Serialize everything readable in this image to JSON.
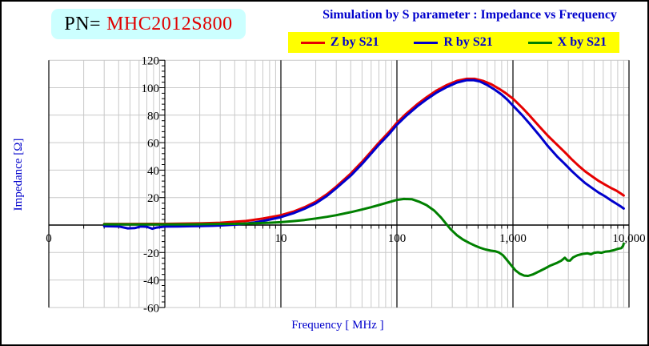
{
  "header": {
    "pn_label": "PN=",
    "pn_value": "MHC2012S800"
  },
  "colors": {
    "accent_blue": "#0000cc",
    "legend_bg": "#ffff00",
    "pn_bg": "#ccffff",
    "pn_value_red": "#e00000",
    "grid_gray": "#c9c9c9",
    "axis_black": "#000000",
    "tick_text": "#000000"
  },
  "chart_data": {
    "type": "line",
    "title": "Simulation by S parameter : Impedance vs Frequency",
    "xlabel": "Frequency [ MHz ]",
    "ylabel": "Impedance [Ω]",
    "x_scale": "log",
    "xlim_mhz": [
      0.1,
      10000
    ],
    "ylim": [
      -60,
      120
    ],
    "y_tick_step": 20,
    "y_tick_labels": [
      120,
      100,
      80,
      60,
      40,
      20,
      -20,
      -40,
      -60
    ],
    "x_ticks": [
      {
        "label": "0",
        "mhz": 0.1
      },
      {
        "label": "10",
        "mhz": 10
      },
      {
        "label": "100",
        "mhz": 100
      },
      {
        "label": "1,000",
        "mhz": 1000
      },
      {
        "label": "10,000",
        "mhz": 10000
      }
    ],
    "grid": "log minor gridlines gray; decade lines, zero line, left frame and 1 MHz value axis black",
    "legend_position": "top",
    "series": [
      {
        "name": "Z by S21",
        "color": "#e60000",
        "points": [
          [
            0.3,
            0.8
          ],
          [
            0.5,
            0.8
          ],
          [
            0.8,
            0.9
          ],
          [
            1,
            0.9
          ],
          [
            2,
            1.2
          ],
          [
            3,
            1.7
          ],
          [
            5,
            3
          ],
          [
            7,
            4.8
          ],
          [
            10,
            7.2
          ],
          [
            13,
            10
          ],
          [
            16,
            13
          ],
          [
            20,
            17
          ],
          [
            25,
            22.5
          ],
          [
            30,
            28
          ],
          [
            40,
            37.5
          ],
          [
            50,
            46
          ],
          [
            60,
            53.5
          ],
          [
            70,
            60
          ],
          [
            85,
            67.5
          ],
          [
            100,
            74.5
          ],
          [
            120,
            81
          ],
          [
            150,
            88
          ],
          [
            180,
            93
          ],
          [
            220,
            98
          ],
          [
            270,
            102
          ],
          [
            330,
            105
          ],
          [
            400,
            106.5
          ],
          [
            470,
            106.5
          ],
          [
            550,
            105
          ],
          [
            650,
            102.5
          ],
          [
            750,
            99.5
          ],
          [
            850,
            96.5
          ],
          [
            1000,
            92
          ],
          [
            1200,
            85.5
          ],
          [
            1400,
            79.5
          ],
          [
            1700,
            71.5
          ],
          [
            2000,
            65
          ],
          [
            2400,
            58.5
          ],
          [
            2800,
            53
          ],
          [
            3200,
            48
          ],
          [
            3700,
            43
          ],
          [
            4200,
            39
          ],
          [
            4800,
            35.5
          ],
          [
            5500,
            32
          ],
          [
            6200,
            29.5
          ],
          [
            7000,
            27
          ],
          [
            7800,
            25
          ],
          [
            8500,
            23
          ],
          [
            9000,
            21.5
          ]
        ]
      },
      {
        "name": "R by S21",
        "color": "#0000cc",
        "points": [
          [
            0.3,
            -0.8
          ],
          [
            0.4,
            -1
          ],
          [
            0.48,
            -2.4
          ],
          [
            0.55,
            -2.2
          ],
          [
            0.62,
            -1
          ],
          [
            0.7,
            -1.2
          ],
          [
            0.78,
            -2.7
          ],
          [
            0.85,
            -1.8
          ],
          [
            1,
            -1.1
          ],
          [
            1.3,
            -1
          ],
          [
            1.7,
            -0.8
          ],
          [
            2,
            -0.7
          ],
          [
            2.6,
            -0.5
          ],
          [
            3,
            -0.3
          ],
          [
            4,
            0.3
          ],
          [
            5,
            1.1
          ],
          [
            6,
            2
          ],
          [
            7,
            3
          ],
          [
            8,
            4
          ],
          [
            10,
            5.8
          ],
          [
            13,
            8.8
          ],
          [
            16,
            11.9
          ],
          [
            20,
            15.8
          ],
          [
            25,
            21.3
          ],
          [
            30,
            26.8
          ],
          [
            40,
            36
          ],
          [
            50,
            44.5
          ],
          [
            60,
            52
          ],
          [
            70,
            58.5
          ],
          [
            85,
            66
          ],
          [
            100,
            73
          ],
          [
            120,
            79.5
          ],
          [
            150,
            86.5
          ],
          [
            180,
            91.5
          ],
          [
            220,
            96.5
          ],
          [
            270,
            100.5
          ],
          [
            330,
            103.8
          ],
          [
            400,
            105.5
          ],
          [
            460,
            105.5
          ],
          [
            520,
            104.5
          ],
          [
            600,
            102
          ],
          [
            700,
            98.5
          ],
          [
            800,
            95
          ],
          [
            900,
            91
          ],
          [
            1000,
            87
          ],
          [
            1200,
            80
          ],
          [
            1400,
            73.5
          ],
          [
            1700,
            65
          ],
          [
            2000,
            57.5
          ],
          [
            2400,
            50
          ],
          [
            2800,
            44.5
          ],
          [
            3200,
            39.5
          ],
          [
            3700,
            34.5
          ],
          [
            4200,
            30.5
          ],
          [
            4800,
            27
          ],
          [
            5500,
            23.5
          ],
          [
            6200,
            21
          ],
          [
            7000,
            18
          ],
          [
            7800,
            15.5
          ],
          [
            8500,
            13.5
          ],
          [
            9000,
            12
          ]
        ]
      },
      {
        "name": "X by S21",
        "color": "#008000",
        "points": [
          [
            0.3,
            0.6
          ],
          [
            0.5,
            0.5
          ],
          [
            0.8,
            0.5
          ],
          [
            1,
            0.5
          ],
          [
            1.5,
            0.5
          ],
          [
            2,
            0.6
          ],
          [
            3,
            0.8
          ],
          [
            4,
            0.9
          ],
          [
            5,
            1.1
          ],
          [
            6,
            1.3
          ],
          [
            7,
            1.5
          ],
          [
            8,
            1.7
          ],
          [
            10,
            2.1
          ],
          [
            13,
            2.9
          ],
          [
            16,
            3.7
          ],
          [
            20,
            4.8
          ],
          [
            25,
            6
          ],
          [
            30,
            7.2
          ],
          [
            40,
            9.4
          ],
          [
            50,
            11.3
          ],
          [
            60,
            13
          ],
          [
            70,
            14.6
          ],
          [
            85,
            16.6
          ],
          [
            100,
            18.3
          ],
          [
            115,
            19
          ],
          [
            135,
            18.8
          ],
          [
            155,
            17
          ],
          [
            180,
            14.5
          ],
          [
            210,
            10.5
          ],
          [
            240,
            5.5
          ],
          [
            265,
            1
          ],
          [
            290,
            -3
          ],
          [
            330,
            -7.5
          ],
          [
            370,
            -10.5
          ],
          [
            420,
            -13
          ],
          [
            470,
            -15
          ],
          [
            520,
            -16.5
          ],
          [
            580,
            -17.8
          ],
          [
            640,
            -18.6
          ],
          [
            700,
            -19
          ],
          [
            760,
            -20
          ],
          [
            820,
            -22
          ],
          [
            880,
            -25
          ],
          [
            950,
            -28.5
          ],
          [
            1050,
            -33
          ],
          [
            1150,
            -35.5
          ],
          [
            1250,
            -36.8
          ],
          [
            1350,
            -37
          ],
          [
            1500,
            -35.8
          ],
          [
            1700,
            -33.5
          ],
          [
            1900,
            -31.5
          ],
          [
            2100,
            -29.5
          ],
          [
            2400,
            -27.5
          ],
          [
            2600,
            -26
          ],
          [
            2800,
            -23.8
          ],
          [
            2950,
            -25.8
          ],
          [
            3100,
            -25.9
          ],
          [
            3300,
            -23.5
          ],
          [
            3600,
            -22
          ],
          [
            4000,
            -21
          ],
          [
            4400,
            -20.6
          ],
          [
            4700,
            -21.3
          ],
          [
            5000,
            -20.2
          ],
          [
            5400,
            -19.8
          ],
          [
            5800,
            -20.2
          ],
          [
            6300,
            -19.3
          ],
          [
            6800,
            -19
          ],
          [
            7400,
            -18.3
          ],
          [
            8000,
            -17.3
          ],
          [
            8600,
            -16.8
          ],
          [
            8900,
            -15
          ],
          [
            9000,
            -13.5
          ]
        ]
      }
    ]
  }
}
